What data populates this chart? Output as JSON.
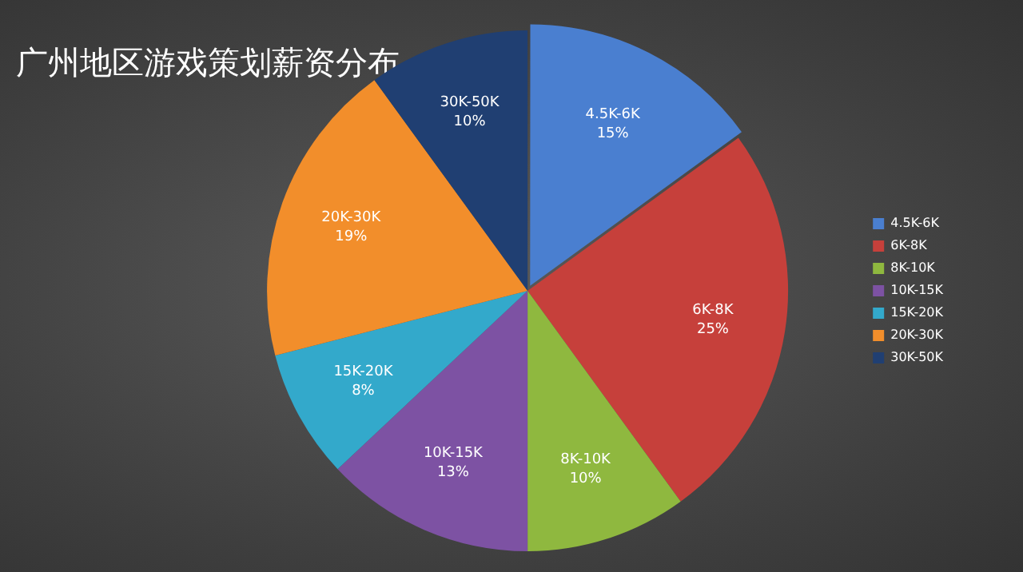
{
  "chart_data": {
    "type": "pie",
    "title": "广州地区游戏策划薪资分布",
    "categories": [
      "4.5K-6K",
      "6K-8K",
      "8K-10K",
      "10K-15K",
      "15K-20K",
      "20K-30K",
      "30K-50K"
    ],
    "values": [
      15,
      25,
      10,
      13,
      8,
      19,
      10
    ],
    "value_labels": [
      "15%",
      "25%",
      "10%",
      "13%",
      "8%",
      "19%",
      "10%"
    ],
    "colors": [
      "#4a7fd0",
      "#c6403b",
      "#8fb83f",
      "#7d52a3",
      "#33a9cb",
      "#f28e2b",
      "#203f72"
    ],
    "legend": "right"
  }
}
